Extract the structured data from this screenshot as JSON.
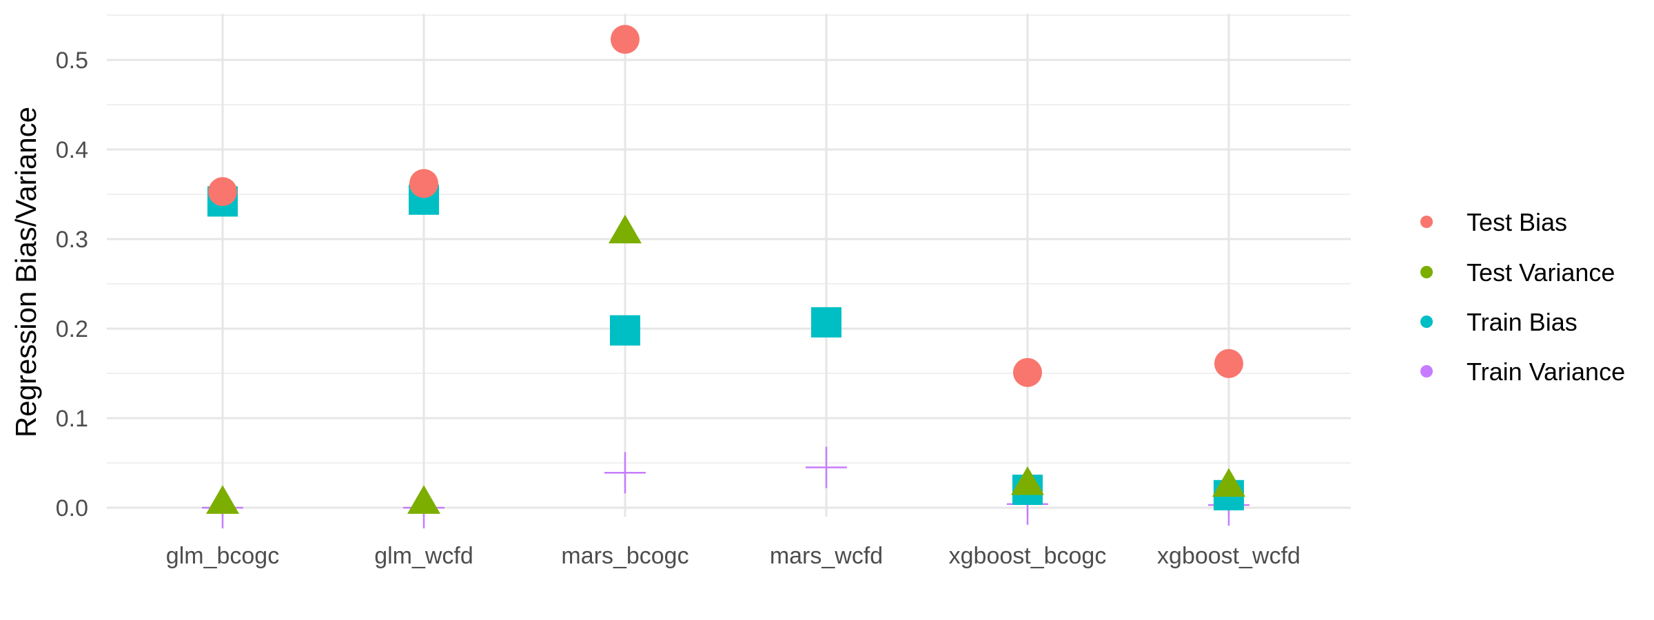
{
  "chart_data": {
    "type": "scatter",
    "title": "",
    "xlabel": "",
    "ylabel": "Regression Bias/Variance",
    "categories": [
      "glm_bcogc",
      "glm_wcfd",
      "mars_bcogc",
      "mars_wcfd",
      "xgboost_bcogc",
      "xgboost_wcfd"
    ],
    "ylim": [
      -0.02,
      0.55
    ],
    "yticks": [
      0.0,
      0.1,
      0.2,
      0.3,
      0.4,
      0.5
    ],
    "ytick_labels": [
      "0.0",
      "0.1",
      "0.2",
      "0.3",
      "0.4",
      "0.5"
    ],
    "grid": true,
    "legend_position": "right",
    "series": [
      {
        "name": "Test Bias",
        "color": "#F8766D",
        "shape": "circle",
        "values": [
          0.353,
          0.362,
          0.523,
          null,
          0.151,
          0.161
        ]
      },
      {
        "name": "Test Variance",
        "color": "#7CAE00",
        "shape": "triangle",
        "values": [
          0.006,
          0.006,
          0.308,
          null,
          0.027,
          0.025
        ]
      },
      {
        "name": "Train Bias",
        "color": "#00BFC4",
        "shape": "square",
        "values": [
          0.342,
          0.344,
          0.198,
          0.207,
          0.02,
          0.014
        ]
      },
      {
        "name": "Train Variance",
        "color": "#C77CFF",
        "shape": "plus",
        "values": [
          0.0,
          0.0,
          0.039,
          0.045,
          0.004,
          0.003
        ]
      }
    ]
  }
}
